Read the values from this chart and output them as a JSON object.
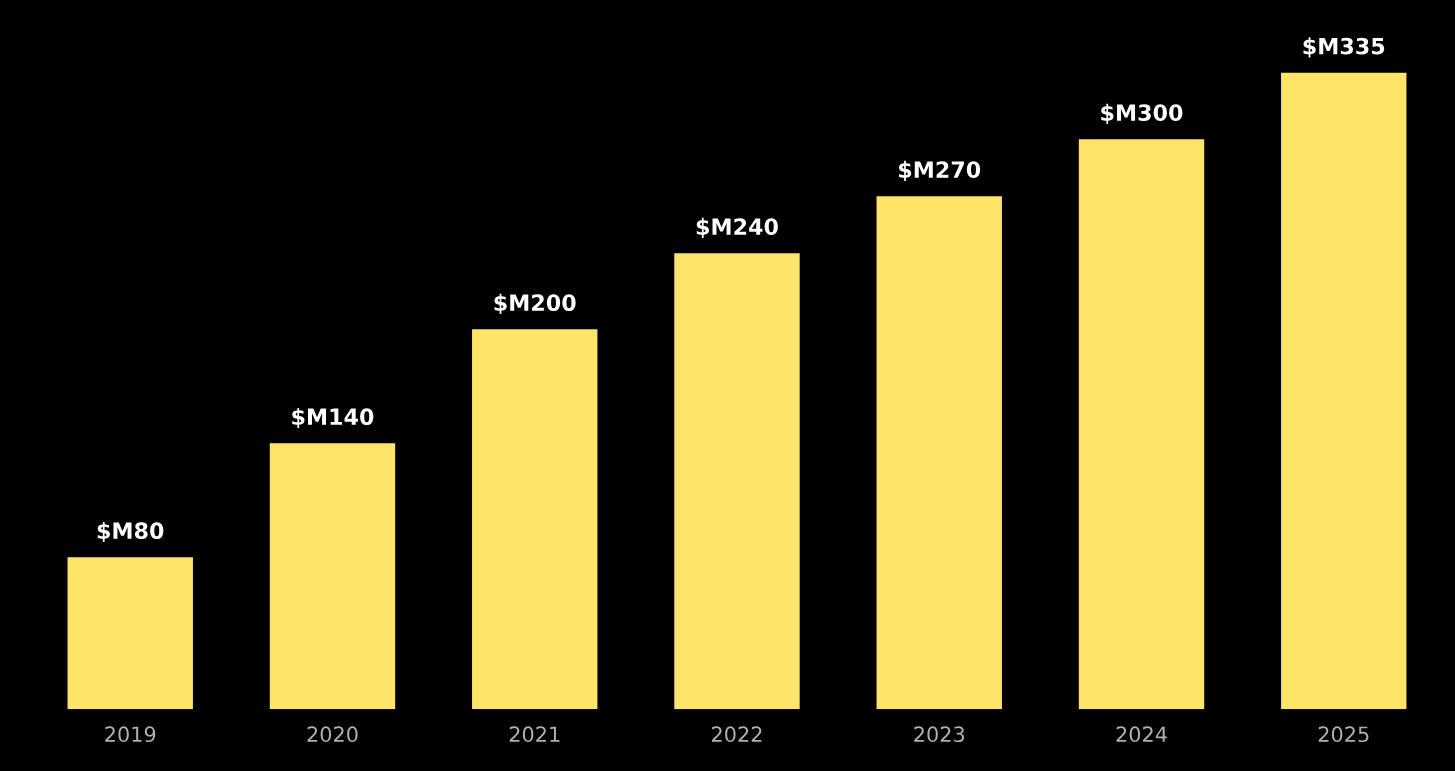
{
  "chart_data": {
    "type": "bar",
    "categories": [
      "2019",
      "2020",
      "2021",
      "2022",
      "2023",
      "2024",
      "2025"
    ],
    "values": [
      80,
      140,
      200,
      240,
      270,
      300,
      335
    ],
    "value_labels": [
      "$M80",
      "$M140",
      "$M200",
      "$M240",
      "$M270",
      "$M300",
      "$M335"
    ],
    "color": "#ffe46a",
    "grid": false,
    "legend": false,
    "tick_labels": "x"
  }
}
